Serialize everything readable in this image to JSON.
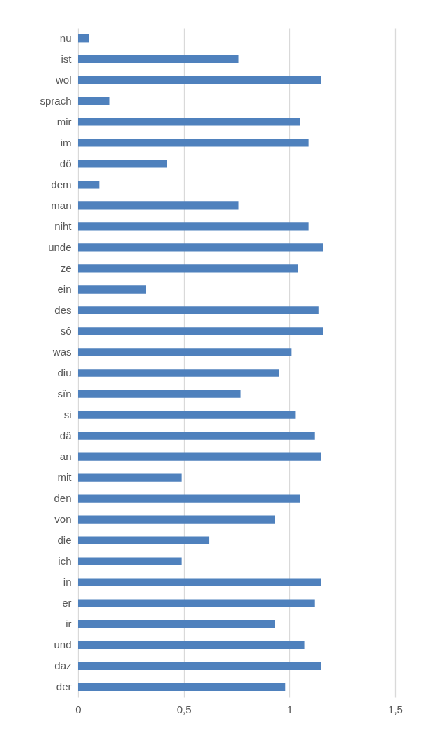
{
  "chart_data": {
    "type": "bar",
    "orientation": "horizontal",
    "categories": [
      "nu",
      "ist",
      "wol",
      "sprach",
      "mir",
      "im",
      "dô",
      "dem",
      "man",
      "niht",
      "unde",
      "ze",
      "ein",
      "des",
      "sô",
      "was",
      "diu",
      "sîn",
      "si",
      "dâ",
      "an",
      "mit",
      "den",
      "von",
      "die",
      "ich",
      "in",
      "er",
      "ir",
      "und",
      "daz",
      "der"
    ],
    "values": [
      0.05,
      0.76,
      1.15,
      0.15,
      1.05,
      1.09,
      0.42,
      0.1,
      0.76,
      1.09,
      1.16,
      1.04,
      0.32,
      1.14,
      1.16,
      1.01,
      0.95,
      0.77,
      1.03,
      1.12,
      1.15,
      0.49,
      1.05,
      0.93,
      0.62,
      0.49,
      1.15,
      1.12,
      0.93,
      1.07,
      1.15,
      0.98
    ],
    "color": "#4f81bd",
    "xlim": [
      0,
      1.5
    ],
    "xticks": [
      0,
      {
        "value": 0.5,
        "label": "0,5"
      },
      1,
      {
        "value": 1.5,
        "label": "1,5"
      }
    ],
    "grid": "x"
  }
}
